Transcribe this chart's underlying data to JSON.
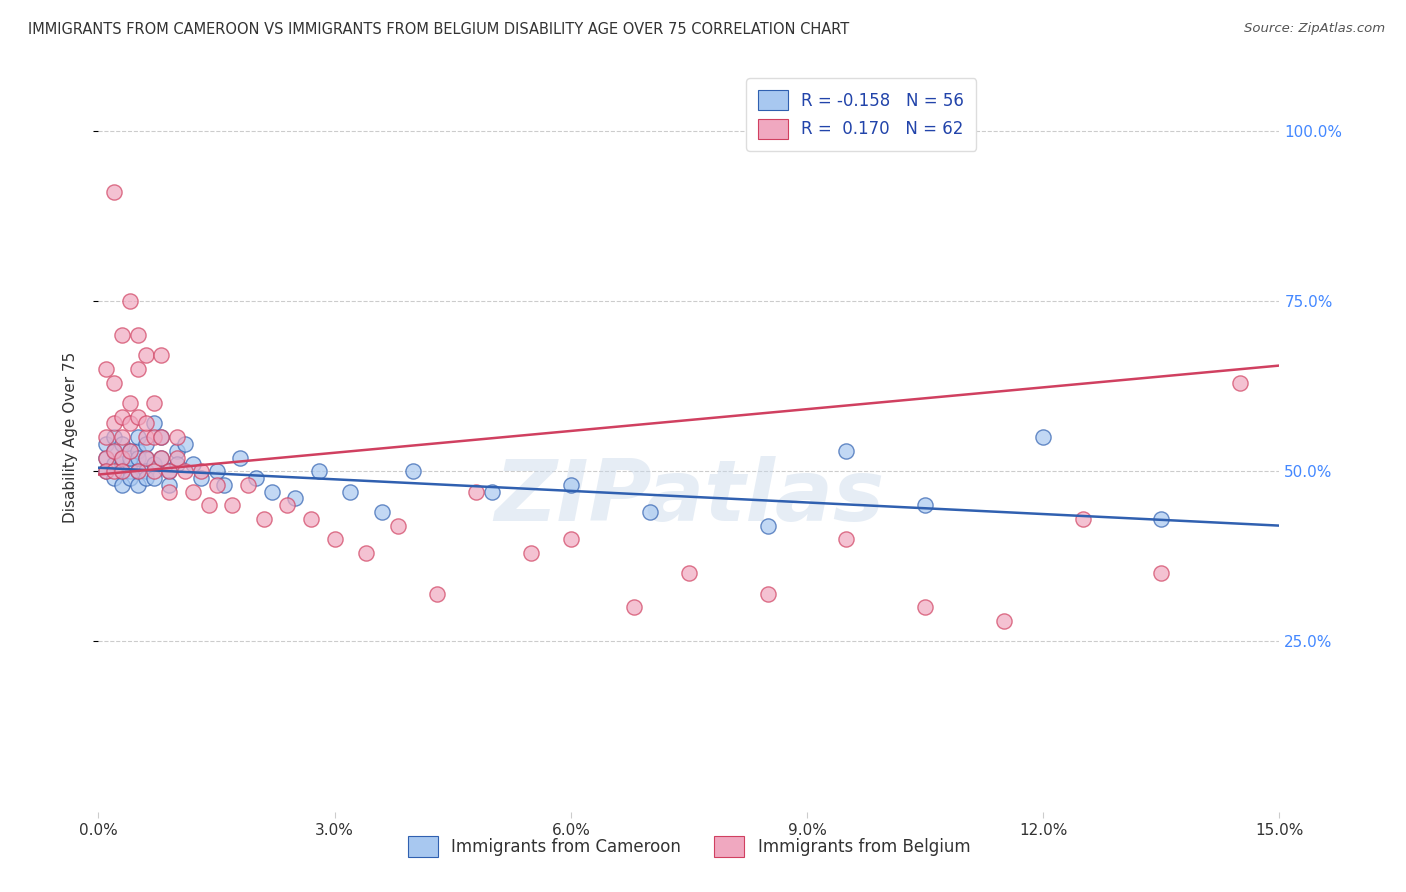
{
  "title": "IMMIGRANTS FROM CAMEROON VS IMMIGRANTS FROM BELGIUM DISABILITY AGE OVER 75 CORRELATION CHART",
  "source": "Source: ZipAtlas.com",
  "ylabel": "Disability Age Over 75",
  "xlabel_cameroon": "Immigrants from Cameroon",
  "xlabel_belgium": "Immigrants from Belgium",
  "watermark": "ZIPatlas",
  "r_cameroon": -0.158,
  "n_cameroon": 56,
  "r_belgium": 0.17,
  "n_belgium": 62,
  "xlim": [
    0.0,
    0.15
  ],
  "ylim": [
    0.0,
    1.1
  ],
  "yticks": [
    0.25,
    0.5,
    0.75,
    1.0
  ],
  "ytick_labels": [
    "25.0%",
    "50.0%",
    "75.0%",
    "100.0%"
  ],
  "xticks": [
    0.0,
    0.03,
    0.06,
    0.09,
    0.12,
    0.15
  ],
  "xtick_labels": [
    "0.0%",
    "3.0%",
    "6.0%",
    "9.0%",
    "12.0%",
    "15.0%"
  ],
  "color_cameroon": "#a8c8f0",
  "color_belgium": "#f0a8c0",
  "trend_color_cameroon": "#3060b0",
  "trend_color_belgium": "#d04060",
  "bg_color": "#ffffff",
  "grid_color": "#cccccc",
  "right_axis_color": "#4488ff",
  "title_color": "#333333",
  "cameroon_x": [
    0.001,
    0.001,
    0.001,
    0.002,
    0.002,
    0.002,
    0.002,
    0.003,
    0.003,
    0.003,
    0.003,
    0.003,
    0.004,
    0.004,
    0.004,
    0.004,
    0.004,
    0.005,
    0.005,
    0.005,
    0.005,
    0.005,
    0.006,
    0.006,
    0.006,
    0.006,
    0.007,
    0.007,
    0.007,
    0.008,
    0.008,
    0.009,
    0.009,
    0.01,
    0.01,
    0.011,
    0.012,
    0.013,
    0.015,
    0.016,
    0.018,
    0.02,
    0.022,
    0.025,
    0.028,
    0.032,
    0.036,
    0.04,
    0.05,
    0.06,
    0.07,
    0.085,
    0.095,
    0.105,
    0.12,
    0.135
  ],
  "cameroon_y": [
    0.52,
    0.5,
    0.54,
    0.51,
    0.49,
    0.53,
    0.55,
    0.51,
    0.5,
    0.52,
    0.48,
    0.54,
    0.5,
    0.53,
    0.51,
    0.49,
    0.52,
    0.53,
    0.5,
    0.52,
    0.48,
    0.55,
    0.52,
    0.5,
    0.54,
    0.49,
    0.57,
    0.51,
    0.49,
    0.55,
    0.52,
    0.5,
    0.48,
    0.53,
    0.51,
    0.54,
    0.51,
    0.49,
    0.5,
    0.48,
    0.52,
    0.49,
    0.47,
    0.46,
    0.5,
    0.47,
    0.44,
    0.5,
    0.47,
    0.48,
    0.44,
    0.42,
    0.53,
    0.45,
    0.55,
    0.43
  ],
  "belgium_x": [
    0.001,
    0.001,
    0.001,
    0.001,
    0.002,
    0.002,
    0.002,
    0.002,
    0.002,
    0.003,
    0.003,
    0.003,
    0.003,
    0.003,
    0.004,
    0.004,
    0.004,
    0.004,
    0.005,
    0.005,
    0.005,
    0.005,
    0.006,
    0.006,
    0.006,
    0.006,
    0.007,
    0.007,
    0.007,
    0.008,
    0.008,
    0.008,
    0.009,
    0.009,
    0.01,
    0.01,
    0.011,
    0.012,
    0.013,
    0.014,
    0.015,
    0.017,
    0.019,
    0.021,
    0.024,
    0.027,
    0.03,
    0.034,
    0.038,
    0.043,
    0.048,
    0.055,
    0.06,
    0.068,
    0.075,
    0.085,
    0.095,
    0.105,
    0.115,
    0.125,
    0.135,
    0.145
  ],
  "belgium_y": [
    0.52,
    0.55,
    0.5,
    0.65,
    0.53,
    0.57,
    0.5,
    0.63,
    0.91,
    0.52,
    0.55,
    0.5,
    0.58,
    0.7,
    0.53,
    0.57,
    0.6,
    0.75,
    0.65,
    0.5,
    0.58,
    0.7,
    0.52,
    0.55,
    0.67,
    0.57,
    0.5,
    0.55,
    0.6,
    0.52,
    0.55,
    0.67,
    0.5,
    0.47,
    0.52,
    0.55,
    0.5,
    0.47,
    0.5,
    0.45,
    0.48,
    0.45,
    0.48,
    0.43,
    0.45,
    0.43,
    0.4,
    0.38,
    0.42,
    0.32,
    0.47,
    0.38,
    0.4,
    0.3,
    0.35,
    0.32,
    0.4,
    0.3,
    0.28,
    0.43,
    0.35,
    0.63
  ]
}
